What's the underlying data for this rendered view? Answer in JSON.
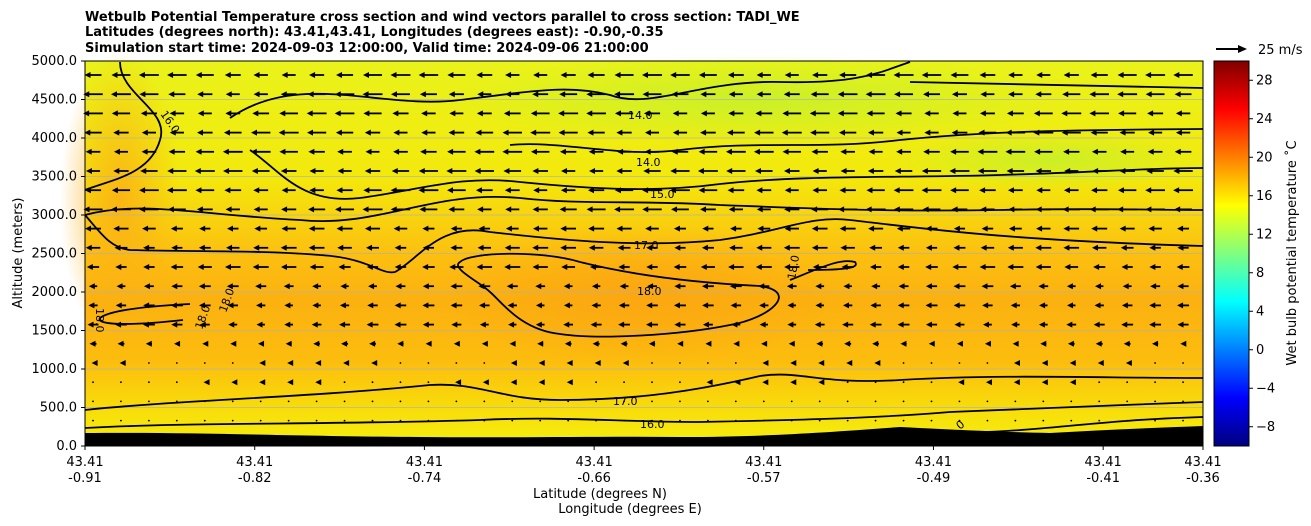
{
  "chart_data": {
    "type": "contour-cross-section",
    "title_lines": [
      "Wetbulb Potential Temperature cross section and wind vectors parallel to cross section: TADI_WE",
      "Latitudes (degrees north): 43.41,43.41, Longitudes (degrees east): -0.90,-0.35",
      "Simulation start time: 2024-09-03 12:00:00, Valid time: 2024-09-06 21:00:00"
    ],
    "ylabel": "Altitude (meters)",
    "xlabel_lines": [
      "Latitude (degrees N)",
      "Longitude (degrees E)"
    ],
    "ylim": [
      0,
      5000
    ],
    "y_ticks": [
      "0.0",
      "500.0",
      "1000.0",
      "1500.0",
      "2000.0",
      "2500.0",
      "3000.0",
      "3500.0",
      "4000.0",
      "4500.0",
      "5000.0"
    ],
    "y_tick_values": [
      0,
      500,
      1000,
      1500,
      2000,
      2500,
      3000,
      3500,
      4000,
      4500,
      5000
    ],
    "x_ticks": [
      {
        "lat": "43.41",
        "lon": "-0.91"
      },
      {
        "lat": "43.41",
        "lon": "-0.82"
      },
      {
        "lat": "43.41",
        "lon": "-0.74"
      },
      {
        "lat": "43.41",
        "lon": "-0.66"
      },
      {
        "lat": "43.41",
        "lon": "-0.57"
      },
      {
        "lat": "43.41",
        "lon": "-0.49"
      },
      {
        "lat": "43.41",
        "lon": "-0.41"
      },
      {
        "lat": "43.41",
        "lon": "-0.36"
      }
    ],
    "x_tick_fractions": [
      0,
      0.1518,
      0.3036,
      0.4554,
      0.6071,
      0.7589,
      0.9107,
      1.0
    ],
    "colorbar": {
      "label": "Wet bulb potential temperature ˚C",
      "range": [
        -10,
        30
      ],
      "ticks": [
        "−8",
        "−4",
        "0",
        "4",
        "8",
        "12",
        "16",
        "20",
        "24",
        "28"
      ],
      "tick_values": [
        -8,
        -4,
        0,
        4,
        8,
        12,
        16,
        20,
        24,
        28
      ]
    },
    "contour_labels": [
      "14.0",
      "14.0",
      "15.0",
      "16.0",
      "16.0",
      "17.0",
      "17.0",
      "18.0",
      "18.0",
      "18.0",
      "18.0",
      "18.0",
      "16.0",
      "0"
    ],
    "wind_key": {
      "label": "25 m/s",
      "speed": 25
    },
    "grid": true
  }
}
